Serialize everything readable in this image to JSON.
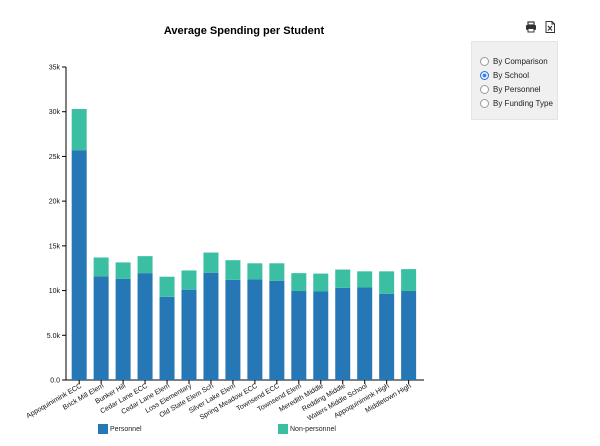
{
  "toolbar": {
    "print_icon": "printer-icon",
    "export_icon": "excel-export-icon"
  },
  "view_options": [
    {
      "label": "By Comparison",
      "checked": false
    },
    {
      "label": "By School",
      "checked": true
    },
    {
      "label": "By Personnel",
      "checked": false
    },
    {
      "label": "By Funding Type",
      "checked": false
    }
  ],
  "colors": {
    "personnel": "#2677b6",
    "nonpersonnel": "#3bbfa3"
  },
  "chart_data": {
    "type": "bar",
    "stacked": true,
    "title": "Average Spending per Student",
    "xlabel": "",
    "ylabel": "",
    "ylim": [
      0,
      35000
    ],
    "y_ticks": [
      0,
      5000,
      10000,
      15000,
      20000,
      25000,
      30000,
      35000
    ],
    "y_tick_labels": [
      "0.0",
      "5.0k",
      "10k",
      "15k",
      "20k",
      "25k",
      "30k",
      "35k"
    ],
    "grid": false,
    "legend_position": "bottom",
    "categories": [
      "Appoquinimink ECC",
      "Brick Mill Elem",
      "Bunker Hill",
      "Cedar Lane ECC",
      "Cedar Lane Elem",
      "Loss Elementary",
      "Old State Elem Sch",
      "Silver Lake Elem",
      "Spring Meadow ECC",
      "Townsend ECC",
      "Townsend Elem",
      "Meredith Middle",
      "Redding Middle",
      "Waters Middle School",
      "Appoquinimink High",
      "Middletown High"
    ],
    "series": [
      {
        "name": "Personnel",
        "values": [
          25700,
          11600,
          11300,
          11950,
          9300,
          10100,
          12000,
          11200,
          11250,
          11100,
          9950,
          9900,
          10300,
          10350,
          9650,
          9950
        ]
      },
      {
        "name": "Non-personnel",
        "values": [
          4600,
          2100,
          1850,
          1900,
          2250,
          2150,
          2250,
          2200,
          1800,
          1950,
          2000,
          2000,
          2050,
          1800,
          2500,
          2450
        ]
      }
    ]
  }
}
